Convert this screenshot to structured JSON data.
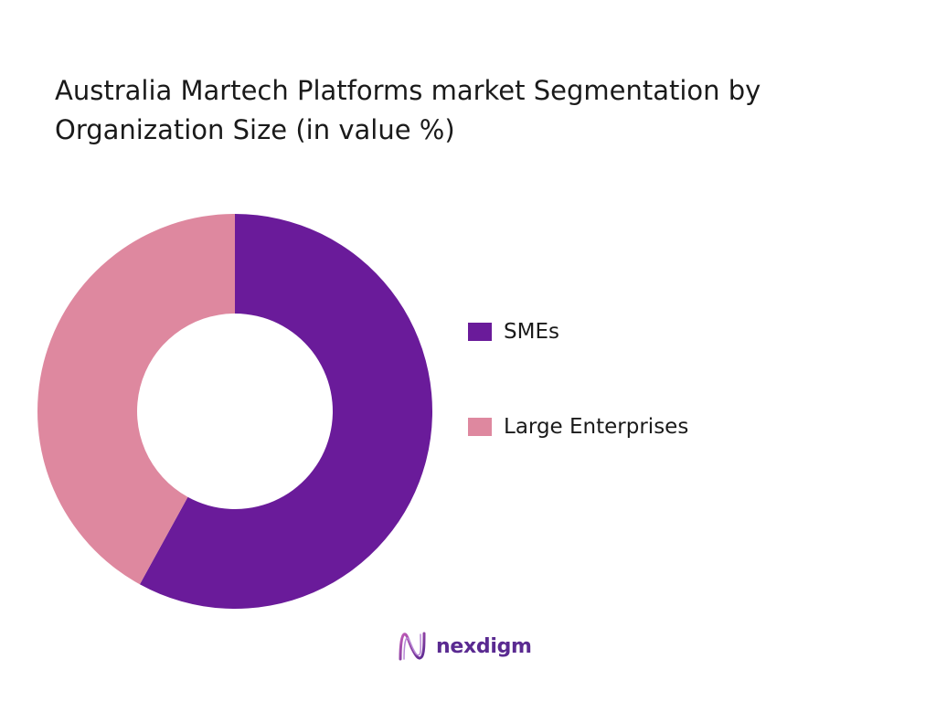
{
  "chart_data": {
    "type": "pie",
    "donut": true,
    "title": "Australia Martech Platforms market Segmentation by Organization Size (in value %)",
    "categories": [
      "SMEs",
      "Large Enterprises"
    ],
    "values": [
      58,
      42
    ],
    "colors": [
      "#6a1b9a",
      "#de889f"
    ],
    "legend_position": "right",
    "data_labels_shown": false
  },
  "brand": {
    "name": "nexdigm",
    "logo_icon": "nexdigm-logo-icon",
    "color": "#5a2a91"
  }
}
